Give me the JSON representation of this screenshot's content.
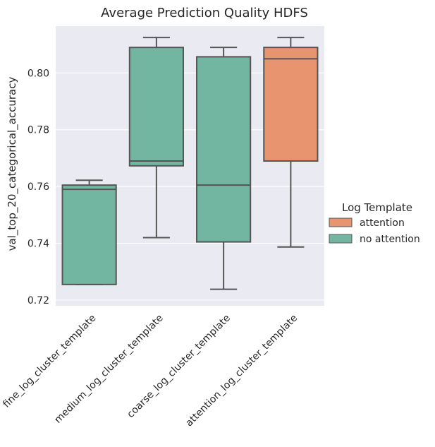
{
  "chart_data": {
    "type": "box",
    "title": "Average Prediction Quality HDFS",
    "ylabel": "val_top_20_categorical_accuracy",
    "xlabel": "",
    "ylim": [
      0.718,
      0.8165
    ],
    "yticks": [
      0.72,
      0.74,
      0.76,
      0.78,
      0.8
    ],
    "ytick_labels": [
      "0.72",
      "0.74",
      "0.76",
      "0.78",
      "0.80"
    ],
    "grid": true,
    "categories": [
      "fine_log_cluster_template",
      "medium_log_cluster_template",
      "coarse_log_cluster_template",
      "attention_log_cluster_template"
    ],
    "boxes": [
      {
        "category": "fine_log_cluster_template",
        "group": "no attention",
        "whisker_low": 0.7255,
        "q1": 0.7255,
        "median": 0.759,
        "q3": 0.7605,
        "whisker_high": 0.7622
      },
      {
        "category": "medium_log_cluster_template",
        "group": "no attention",
        "whisker_low": 0.742,
        "q1": 0.7673,
        "median": 0.769,
        "q3": 0.809,
        "whisker_high": 0.8125
      },
      {
        "category": "coarse_log_cluster_template",
        "group": "no attention",
        "whisker_low": 0.7238,
        "q1": 0.7405,
        "median": 0.7605,
        "q3": 0.8057,
        "whisker_high": 0.809
      },
      {
        "category": "attention_log_cluster_template",
        "group": "attention",
        "whisker_low": 0.7387,
        "q1": 0.769,
        "median": 0.805,
        "q3": 0.809,
        "whisker_high": 0.8125
      }
    ],
    "legend": {
      "title": "Log Template",
      "placement": "right",
      "entries": [
        {
          "label": "attention",
          "color": "#e8956f"
        },
        {
          "label": "no attention",
          "color": "#72b6a1"
        }
      ]
    },
    "colors": {
      "background": "#eaeaf2",
      "grid": "#ffffff",
      "box_edge": "#555555"
    }
  }
}
